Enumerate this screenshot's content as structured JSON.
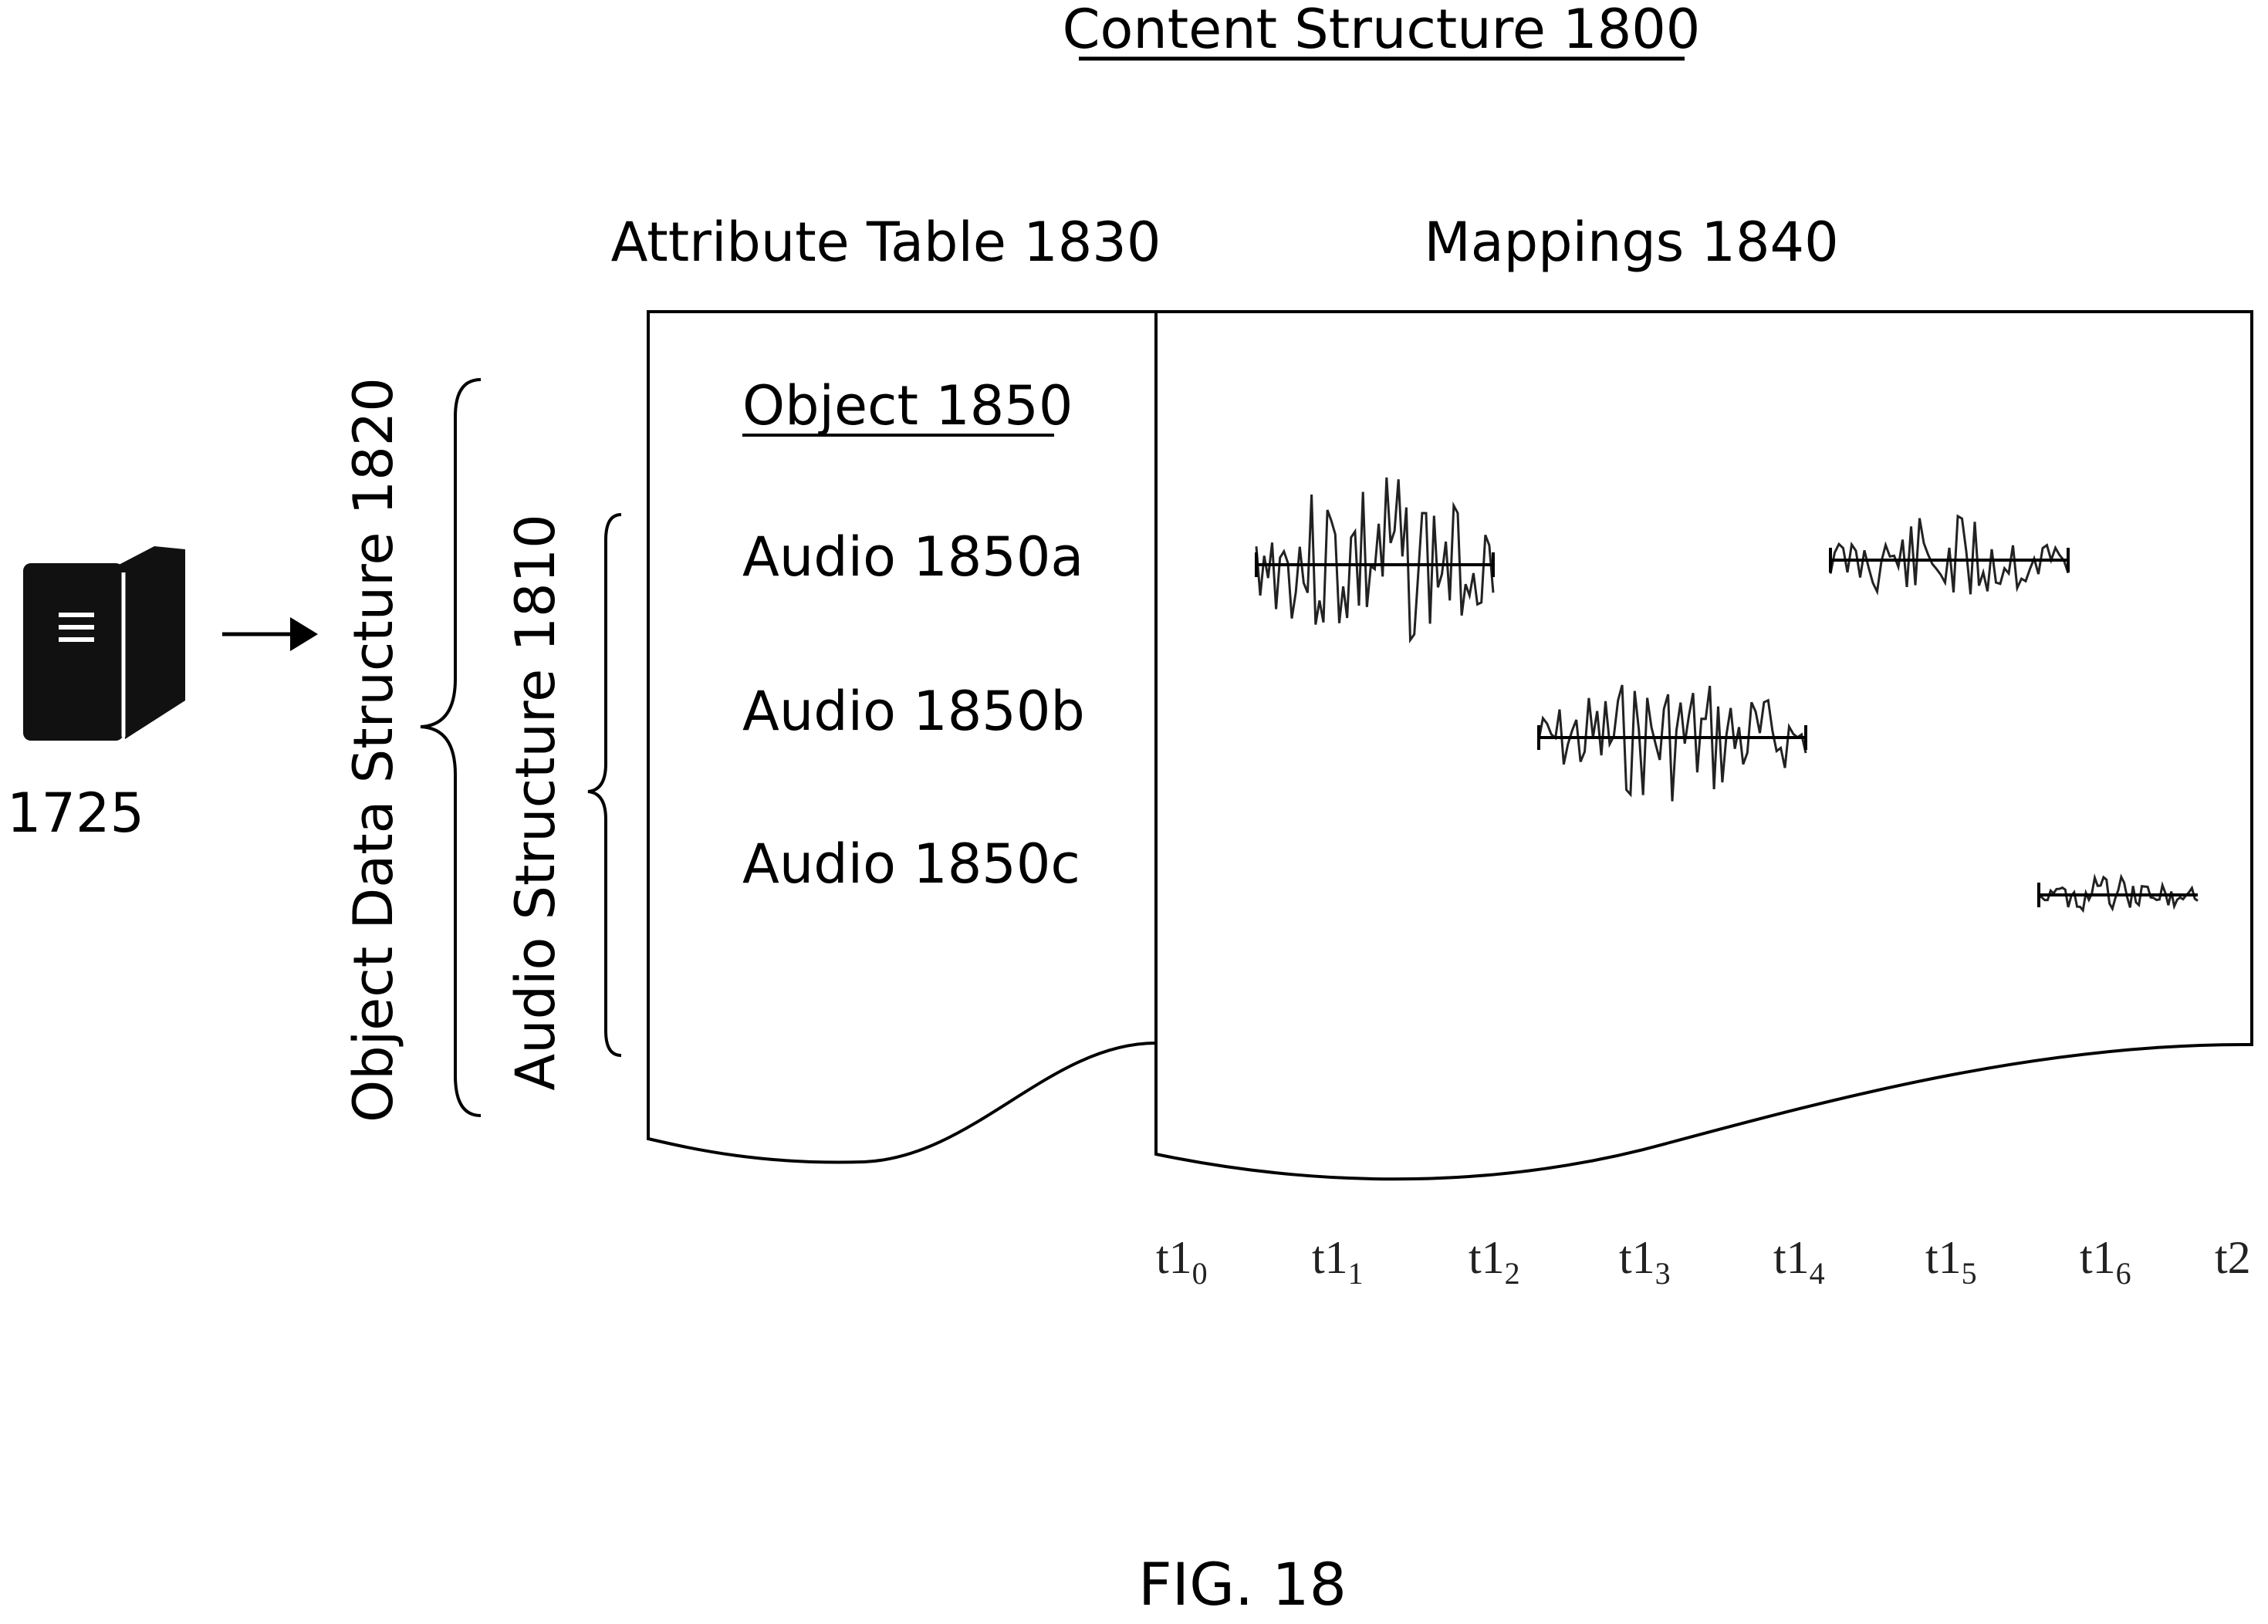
{
  "title": "Content Structure 1800",
  "headers": {
    "attribute_table": "Attribute Table 1830",
    "mappings": "Mappings 1840"
  },
  "device": {
    "label": "1725",
    "icon": "server-icon"
  },
  "braces": {
    "object_data_structure": "Object Data Structure 1820",
    "audio_structure": "Audio Structure 1810"
  },
  "table": {
    "header": "Object 1850",
    "rows": [
      "Audio 1850a",
      "Audio 1850b",
      "Audio 1850c"
    ]
  },
  "timeline": {
    "base": "t1",
    "ticks": [
      {
        "main": "t1",
        "sub": "0"
      },
      {
        "main": "t1",
        "sub": "1"
      },
      {
        "main": "t1",
        "sub": "2"
      },
      {
        "main": "t1",
        "sub": "3"
      },
      {
        "main": "t1",
        "sub": "4"
      },
      {
        "main": "t1",
        "sub": "5"
      },
      {
        "main": "t1",
        "sub": "6"
      },
      {
        "main": "t2",
        "sub": ""
      }
    ]
  },
  "figure_label": "FIG. 18"
}
